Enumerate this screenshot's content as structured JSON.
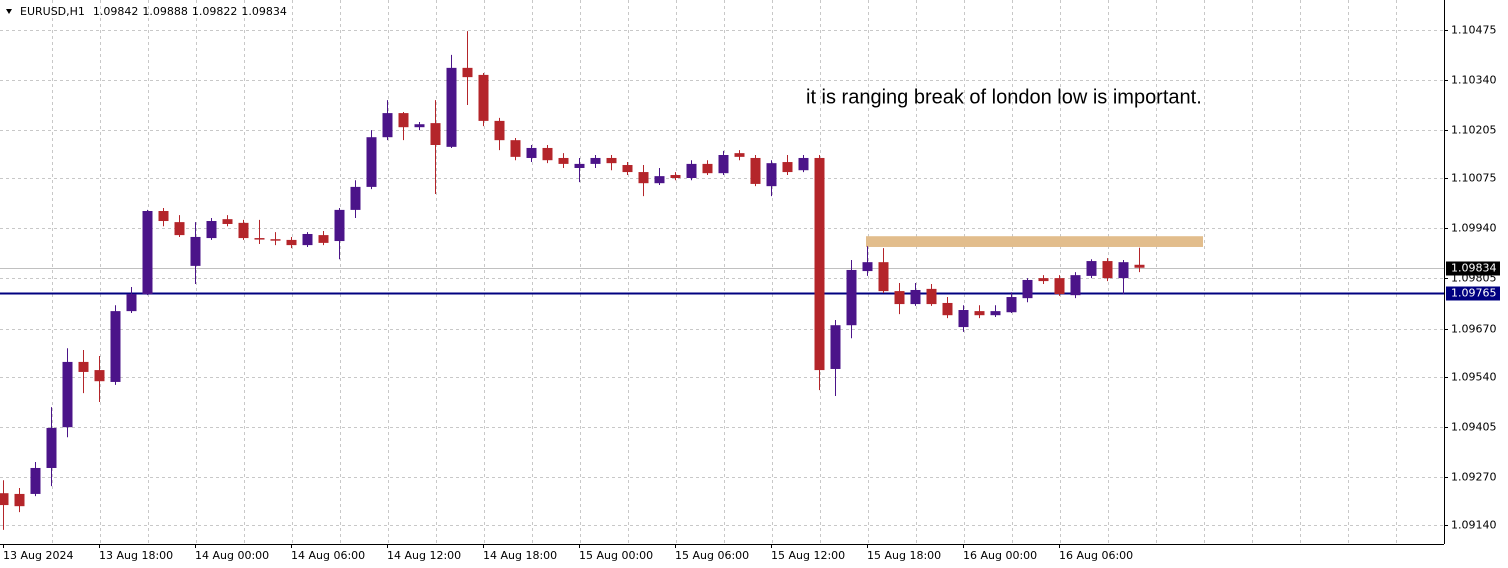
{
  "chart_data": {
    "type": "candlestick",
    "symbol": "EURUSD,H1",
    "annotation": "it is ranging break of london low is important.",
    "categories": [
      "13 Aug 2024",
      null,
      null,
      null,
      null,
      null,
      "13 Aug 18:00",
      null,
      null,
      null,
      null,
      null,
      "14 Aug 00:00",
      null,
      null,
      null,
      null,
      null,
      "14 Aug 06:00",
      null,
      null,
      null,
      null,
      null,
      "14 Aug 12:00",
      null,
      null,
      null,
      null,
      null,
      "14 Aug 18:00",
      null,
      null,
      null,
      null,
      null,
      "15 Aug 00:00",
      null,
      null,
      null,
      null,
      null,
      "15 Aug 06:00",
      null,
      null,
      null,
      null,
      null,
      "15 Aug 12:00",
      null,
      null,
      null,
      null,
      null,
      "15 Aug 18:00",
      null,
      null,
      null,
      null,
      null,
      "16 Aug 00:00",
      null,
      null,
      null,
      null,
      null,
      "16 Aug 06:00",
      null,
      null,
      null,
      null,
      null
    ],
    "open": [
      1.09226,
      1.09224,
      1.09224,
      1.09294,
      1.09404,
      1.0958,
      1.09558,
      1.09526,
      1.09717,
      1.09763,
      1.09987,
      1.09957,
      1.09839,
      1.09914,
      1.09965,
      1.09955,
      1.09914,
      1.09911,
      1.09909,
      1.09895,
      1.09922,
      1.09906,
      1.0999,
      1.10052,
      1.10186,
      1.10251,
      1.10213,
      1.10224,
      1.1016,
      1.10373,
      1.10354,
      1.1023,
      1.10178,
      1.1013,
      1.10157,
      1.1013,
      1.10103,
      1.10114,
      1.1013,
      1.10111,
      1.10092,
      1.10062,
      1.10084,
      1.10076,
      1.10114,
      1.10089,
      1.10143,
      1.1013,
      1.10054,
      1.10119,
      1.10097,
      1.1013,
      1.09561,
      1.09679,
      1.09825,
      1.09849,
      1.09771,
      1.09736,
      1.09777,
      1.09739,
      1.09674,
      1.09717,
      1.09706,
      1.09714,
      1.09752,
      1.09806,
      1.09806,
      1.0976,
      1.09812,
      1.09852,
      1.09806,
      1.09842
    ],
    "high": [
      1.09261,
      1.0924,
      1.0931,
      1.09458,
      1.09617,
      1.09612,
      1.09596,
      1.09733,
      1.09782,
      1.0999,
      1.09995,
      1.09976,
      1.09957,
      1.09968,
      1.09976,
      1.09963,
      1.09963,
      1.0993,
      1.09917,
      1.0993,
      1.09933,
      1.09995,
      1.1007,
      1.10205,
      1.10286,
      1.10254,
      1.10227,
      1.10286,
      1.10408,
      1.10472,
      1.10359,
      1.10238,
      1.10184,
      1.10165,
      1.10165,
      1.10143,
      1.1013,
      1.10138,
      1.10138,
      1.10119,
      1.10111,
      1.10103,
      1.10092,
      1.10124,
      1.10124,
      1.10149,
      1.10151,
      1.10138,
      1.10124,
      1.10138,
      1.10138,
      1.10138,
      1.09693,
      1.09855,
      1.09892,
      1.09887,
      1.09793,
      1.09793,
      1.0979,
      1.09755,
      1.09733,
      1.09733,
      1.09733,
      1.09768,
      1.09806,
      1.09814,
      1.09814,
      1.09822,
      1.09857,
      1.0986,
      1.09855,
      1.09888
    ],
    "low": [
      1.09127,
      1.09175,
      1.09218,
      1.09245,
      1.09377,
      1.09496,
      1.09472,
      1.09518,
      1.09712,
      1.0976,
      1.09946,
      1.09917,
      1.0979,
      1.09909,
      1.09946,
      1.09909,
      1.09898,
      1.09895,
      1.09887,
      1.0989,
      1.09895,
      1.09857,
      1.09968,
      1.10046,
      1.10178,
      1.10178,
      1.10205,
      1.10033,
      1.10157,
      1.10273,
      1.10216,
      1.10151,
      1.10124,
      1.10119,
      1.10116,
      1.10103,
      1.10065,
      1.10103,
      1.10097,
      1.10084,
      1.10027,
      1.10057,
      1.1007,
      1.1007,
      1.10084,
      1.10084,
      1.10124,
      1.10054,
      1.10027,
      1.10084,
      1.10092,
      1.09504,
      1.09488,
      1.09644,
      1.09812,
      1.09766,
      1.09709,
      1.09731,
      1.09731,
      1.09698,
      1.09661,
      1.09698,
      1.09701,
      1.09712,
      1.09741,
      1.0979,
      1.09758,
      1.09752,
      1.09806,
      1.09798,
      1.09763,
      1.09822
    ],
    "close": [
      1.09194,
      1.09191,
      1.09294,
      1.09402,
      1.0958,
      1.09553,
      1.09528,
      1.09717,
      1.09763,
      1.09987,
      1.0996,
      1.09922,
      1.09917,
      1.0996,
      1.09952,
      1.09914,
      1.09911,
      1.09909,
      1.09895,
      1.09925,
      1.09901,
      1.0999,
      1.10052,
      1.10186,
      1.10251,
      1.10213,
      1.10221,
      1.10165,
      1.10373,
      1.10348,
      1.1023,
      1.10178,
      1.10133,
      1.10157,
      1.10124,
      1.10114,
      1.10114,
      1.1013,
      1.10116,
      1.10092,
      1.10062,
      1.10081,
      1.10076,
      1.10114,
      1.10089,
      1.10138,
      1.10133,
      1.1006,
      1.10116,
      1.10092,
      1.1013,
      1.09558,
      1.09679,
      1.09828,
      1.09849,
      1.09771,
      1.09736,
      1.09774,
      1.09736,
      1.09706,
      1.0972,
      1.09706,
      1.09717,
      1.09755,
      1.09801,
      1.09798,
      1.09763,
      1.09814,
      1.09852,
      1.09806,
      1.09849,
      1.09834
    ],
    "up_color": "#4b1489",
    "down_color": "#b4252a",
    "ylim": [
      1.09089,
      1.10556
    ],
    "yticks": [
      1.10475,
      {
        "value": 1.1034,
        "label": "1.10340"
      },
      1.10205,
      1.10075,
      {
        "value": 1.0994,
        "label": "1.09940"
      },
      1.09805,
      {
        "value": 1.0967,
        "label": "1.09670"
      },
      {
        "value": 1.0954,
        "label": "1.09540"
      },
      1.09405,
      {
        "value": 1.0927,
        "label": "1.09270"
      },
      {
        "value": 1.0914,
        "label": "1.09140"
      }
    ],
    "grid": true,
    "hline": {
      "value": 1.09765,
      "color": "#000080"
    },
    "zone": {
      "from": 1.0989,
      "to": 1.09919,
      "color": "#e2bd8c"
    }
  }
}
